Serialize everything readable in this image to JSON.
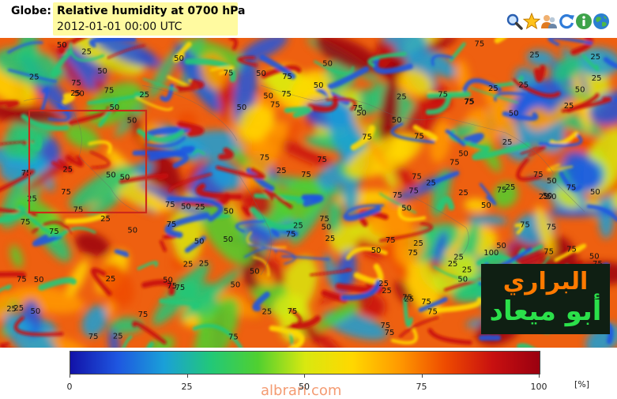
{
  "header": {
    "globe_label": "Globe:",
    "title": "Relative humidity at 0700 hPa",
    "subtitle": "2012-01-01 00:00 UTC"
  },
  "toolbar": {
    "icons": [
      "magnifier-icon",
      "star-icon",
      "users-icon",
      "refresh-icon",
      "info-icon",
      "globe-icon"
    ]
  },
  "map": {
    "contour_levels": [
      "25",
      "50",
      "75",
      "100"
    ],
    "contour_labels": [
      "75",
      "50",
      "25",
      "50",
      "50",
      "75",
      "75",
      "50",
      "25",
      "100",
      "50",
      "50",
      "25",
      "25",
      "75",
      "25",
      "75",
      "75",
      "50",
      "50",
      "75",
      "25",
      "75",
      "50",
      "25",
      "50",
      "25",
      "75",
      "50",
      "75",
      "50",
      "25",
      "75",
      "75",
      "75",
      "75",
      "25",
      "75",
      "50",
      "25",
      "25",
      "50",
      "25",
      "25",
      "75",
      "25",
      "25",
      "75",
      "75",
      "50",
      "25",
      "50",
      "25",
      "75",
      "75",
      "25",
      "25",
      "75",
      "50",
      "25",
      "75",
      "25",
      "75",
      "75",
      "50",
      "50",
      "25",
      "50",
      "75",
      "25",
      "75",
      "75",
      "50",
      "50",
      "50",
      "75",
      "50",
      "25",
      "75",
      "25",
      "25",
      "25",
      "75",
      "50",
      "25",
      "75",
      "75",
      "50",
      "75",
      "75",
      "25",
      "75",
      "50",
      "25",
      "75",
      "75",
      "50",
      "25",
      "75",
      "50",
      "75",
      "50",
      "75",
      "50",
      "75",
      "25",
      "25",
      "75",
      "75",
      "50",
      "25",
      "75",
      "75",
      "25",
      "75",
      "50",
      "50",
      "75",
      "50",
      "75",
      "50",
      "75",
      "75",
      "25",
      "75",
      "50",
      "50",
      "50",
      "75"
    ],
    "highlight_box_color": "#cc2a1a"
  },
  "logo": {
    "line1": "البراري",
    "line2": "أبو ميعاد"
  },
  "colorbar": {
    "colors": [
      "#1212a8",
      "#1e56e0",
      "#1aa0d8",
      "#22c878",
      "#50d030",
      "#d8e810",
      "#ffd800",
      "#ff9a00",
      "#ee4a00",
      "#c81010",
      "#9a0010"
    ],
    "ticks": [
      "0",
      "25",
      "50",
      "75",
      "100"
    ],
    "unit": "[%]"
  },
  "watermark": "albrari.com"
}
